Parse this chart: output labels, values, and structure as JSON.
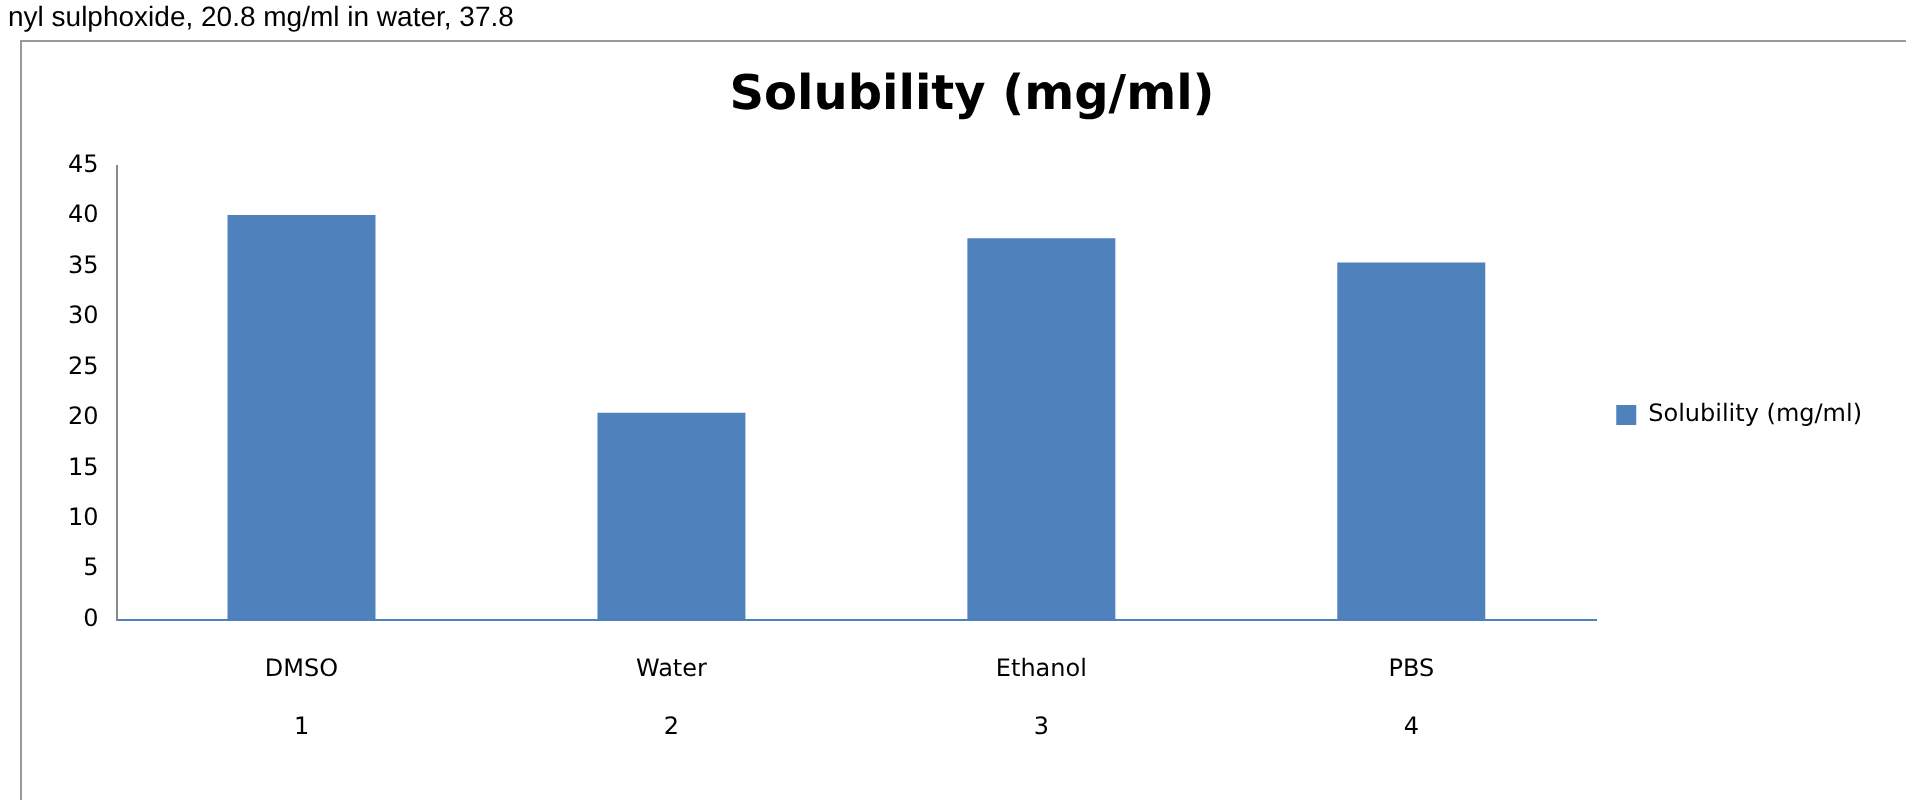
{
  "chart_data": {
    "type": "bar",
    "title": "Solubility (mg/ml)",
    "categories": [
      "DMSO\n\n1",
      "Water\n\n2",
      "Ethanol\n\n3",
      "PBS\n\n4"
    ],
    "series": [
      {
        "name": "Solubility (mg/ml)",
        "color": "#4f81bd",
        "values": [
          40.1,
          20.5,
          37.8,
          35.4
        ]
      }
    ],
    "ylim": [
      0,
      45
    ],
    "yticks": [
      0,
      5,
      10,
      15,
      20,
      25,
      30,
      35,
      40,
      45
    ],
    "grid": false,
    "legend": "right",
    "annotations": [
      "nyl sulphoxide, 20.8 mg/ml in water, 37.8"
    ]
  }
}
